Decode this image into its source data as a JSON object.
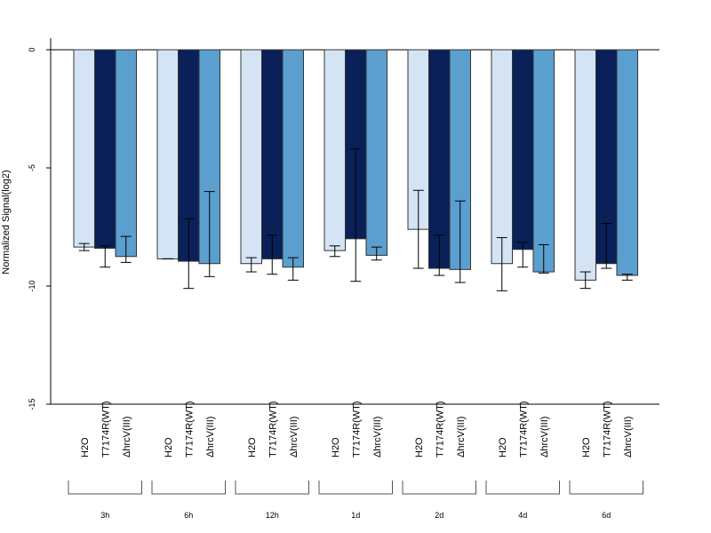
{
  "chart_data": {
    "type": "bar",
    "title": "",
    "xlabel": "",
    "ylabel": "Normalized Signal(log2)",
    "ylim": [
      -15,
      0
    ],
    "yticks": [
      0,
      -5,
      -10,
      -15
    ],
    "grid": false,
    "legend": "none",
    "series_labels": [
      "H2O",
      "T7174R(WT)",
      "ΔhrcV(III)"
    ],
    "colors": [
      "#d5e4f4",
      "#0a2058",
      "#5b9fcf"
    ],
    "groups": [
      {
        "label": "3h",
        "values": [
          -8.35,
          -8.4,
          -8.75
        ],
        "err_low": [
          -8.5,
          -9.2,
          -9.0
        ],
        "err_high": [
          -8.2,
          -8.3,
          -7.9
        ]
      },
      {
        "label": "6h",
        "values": [
          -8.85,
          -8.95,
          -9.05
        ],
        "err_low": [
          -8.85,
          -10.1,
          -9.6
        ],
        "err_high": [
          -8.85,
          -7.15,
          -6.0
        ]
      },
      {
        "label": "12h",
        "values": [
          -9.05,
          -8.85,
          -9.2
        ],
        "err_low": [
          -9.4,
          -9.5,
          -9.75
        ],
        "err_high": [
          -8.8,
          -7.85,
          -8.8
        ]
      },
      {
        "label": "1d",
        "values": [
          -8.5,
          -8.0,
          -8.7
        ],
        "err_low": [
          -8.75,
          -9.8,
          -8.9
        ],
        "err_high": [
          -8.3,
          -4.2,
          -8.35
        ]
      },
      {
        "label": "2d",
        "values": [
          -7.6,
          -9.25,
          -9.3
        ],
        "err_low": [
          -9.25,
          -9.55,
          -9.85
        ],
        "err_high": [
          -5.95,
          -7.85,
          -6.4
        ]
      },
      {
        "label": "4d",
        "values": [
          -9.05,
          -8.45,
          -9.4
        ],
        "err_low": [
          -10.2,
          -9.2,
          -9.45
        ],
        "err_high": [
          -7.95,
          -8.15,
          -8.25
        ]
      },
      {
        "label": "6d",
        "values": [
          -9.75,
          -9.05,
          -9.55
        ],
        "err_low": [
          -10.1,
          -9.25,
          -9.75
        ],
        "err_high": [
          -9.4,
          -7.35,
          -9.5
        ]
      }
    ]
  }
}
